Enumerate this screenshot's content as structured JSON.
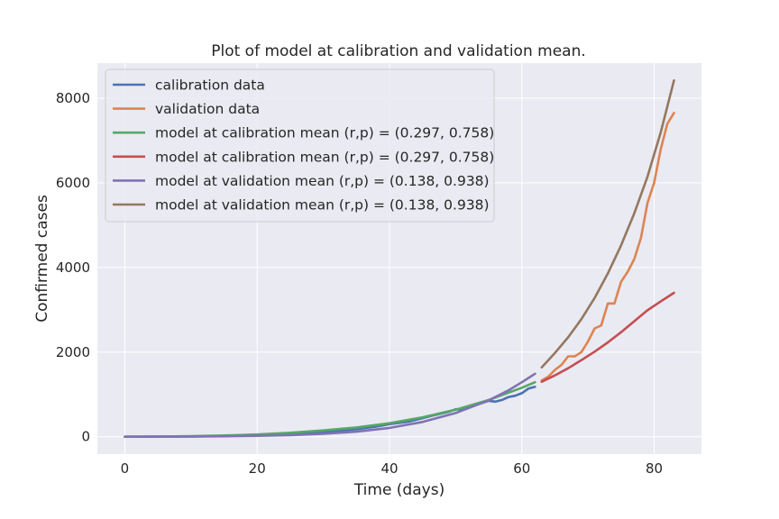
{
  "chart_data": {
    "type": "line",
    "title": "Plot of model at calibration and validation mean.",
    "xlabel": "Time (days)",
    "ylabel": "Confirmed cases",
    "xlim": [
      -4.15,
      87.15
    ],
    "ylim": [
      -410,
      8830
    ],
    "xticks": [
      0,
      20,
      40,
      60,
      80
    ],
    "yticks": [
      0,
      2000,
      4000,
      6000,
      8000
    ],
    "grid": true,
    "legend_position": "top-left",
    "colors": {
      "background": "#eaeaf2",
      "grid": "#ffffff",
      "text": "#262626"
    },
    "series": [
      {
        "name": "calibration data",
        "color": "#4c72b0",
        "x": [
          0,
          5,
          10,
          15,
          20,
          25,
          30,
          35,
          38,
          40,
          43,
          45,
          47,
          49,
          50,
          51,
          52,
          53,
          54,
          55,
          56,
          57,
          58,
          59,
          60,
          61,
          62
        ],
        "y": [
          0,
          3,
          8,
          18,
          30,
          55,
          100,
          180,
          240,
          300,
          360,
          440,
          520,
          590,
          650,
          640,
          690,
          750,
          800,
          850,
          830,
          870,
          940,
          970,
          1030,
          1140,
          1180
        ]
      },
      {
        "name": "validation data",
        "color": "#dd8452",
        "x": [
          63,
          64,
          65,
          66,
          67,
          68,
          69,
          70,
          71,
          72,
          73,
          74,
          75,
          76,
          77,
          78,
          79,
          80,
          81,
          82,
          83
        ],
        "y": [
          1330,
          1420,
          1580,
          1700,
          1900,
          1900,
          2000,
          2250,
          2560,
          2630,
          3150,
          3150,
          3660,
          3900,
          4200,
          4700,
          5530,
          6000,
          6800,
          7400,
          7650
        ]
      },
      {
        "name": "model at calibration mean (r,p) = (0.297, 0.758)",
        "color": "#55a868",
        "x": [
          0,
          5,
          10,
          15,
          20,
          25,
          30,
          35,
          40,
          45,
          50,
          55,
          60,
          62
        ],
        "y": [
          0,
          5,
          14,
          30,
          55,
          95,
          150,
          220,
          320,
          460,
          640,
          870,
          1160,
          1290
        ]
      },
      {
        "name": "model at calibration mean (r,p) = (0.297, 0.758)",
        "color": "#c44e52",
        "x": [
          63,
          65,
          67,
          69,
          71,
          73,
          75,
          77,
          79,
          81,
          83
        ],
        "y": [
          1300,
          1450,
          1620,
          1810,
          2010,
          2230,
          2470,
          2730,
          2990,
          3200,
          3400
        ]
      },
      {
        "name": "model at validation mean (r,p) = (0.138, 0.938)",
        "color": "#8172b3",
        "x": [
          0,
          5,
          10,
          15,
          20,
          25,
          30,
          35,
          40,
          45,
          50,
          55,
          58,
          60,
          62
        ],
        "y": [
          0,
          2,
          6,
          12,
          22,
          40,
          70,
          120,
          210,
          350,
          560,
          860,
          1100,
          1290,
          1490
        ]
      },
      {
        "name": "model at validation mean (r,p) = (0.138, 0.938)",
        "color": "#937860",
        "x": [
          63,
          65,
          67,
          69,
          71,
          73,
          75,
          77,
          79,
          81,
          83
        ],
        "y": [
          1640,
          1980,
          2350,
          2780,
          3280,
          3860,
          4520,
          5280,
          6150,
          7200,
          8420
        ]
      }
    ]
  }
}
